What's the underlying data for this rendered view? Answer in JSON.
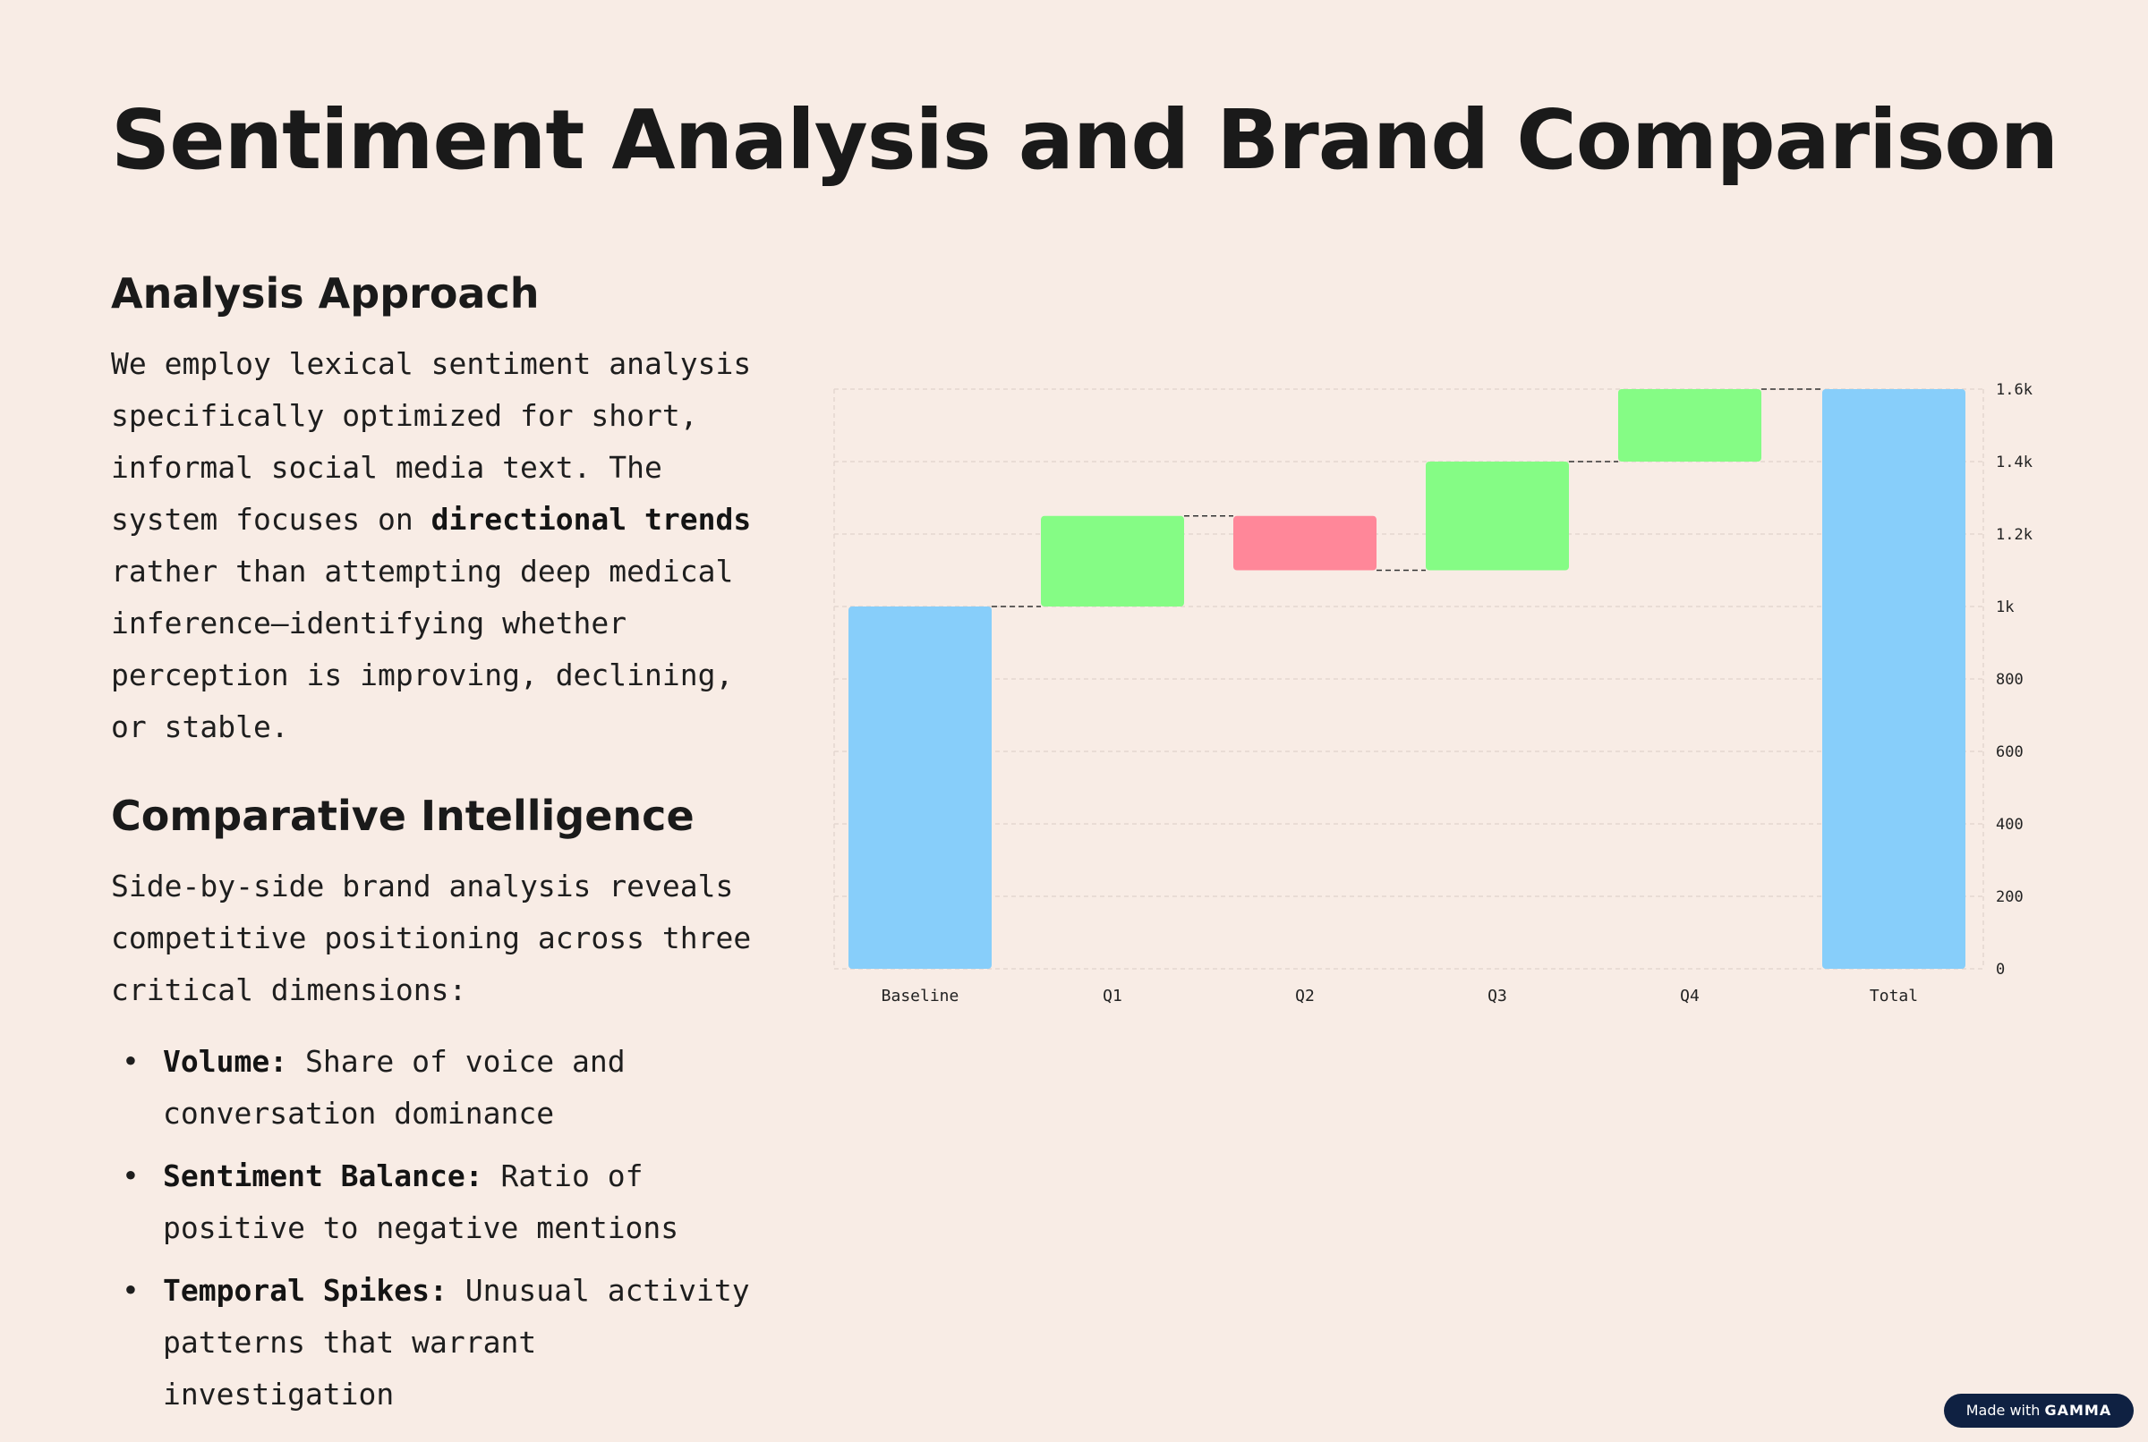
{
  "title": "Sentiment Analysis and Brand Comparison",
  "approach": {
    "heading": "Analysis Approach",
    "text_before": "We employ lexical sentiment analysis specifically optimized for short, informal social media text. The system focuses on ",
    "bold": "directional trends",
    "text_after": " rather than attempting deep medical inference—identifying whether perception is improving, declining, or stable."
  },
  "comparative": {
    "heading": "Comparative Intelligence",
    "intro": "Side-by-side brand analysis reveals competitive positioning across three critical dimensions:",
    "bullets": [
      {
        "term": "Volume:",
        "text": "Share of voice and conversation dominance"
      },
      {
        "term": "Sentiment Balance:",
        "text": "Ratio of positive to negative mentions"
      },
      {
        "term": "Temporal Spikes:",
        "text": "Unusual activity patterns that warrant investigation"
      }
    ]
  },
  "chart_data": {
    "type": "bar",
    "subtype": "waterfall",
    "categories": [
      "Baseline",
      "Q1",
      "Q2",
      "Q3",
      "Q4",
      "Total"
    ],
    "steps": [
      {
        "label": "Baseline",
        "kind": "total",
        "value": 1000
      },
      {
        "label": "Q1",
        "kind": "increase",
        "value": 250
      },
      {
        "label": "Q2",
        "kind": "decrease",
        "value": -150
      },
      {
        "label": "Q3",
        "kind": "increase",
        "value": 300
      },
      {
        "label": "Q4",
        "kind": "increase",
        "value": 200
      },
      {
        "label": "Total",
        "kind": "total",
        "value": 1600
      }
    ],
    "ylim": [
      0,
      1600
    ],
    "y_ticks": [
      0,
      200,
      400,
      600,
      800,
      1000,
      1200,
      1400,
      1600
    ],
    "y_tick_labels": [
      "0",
      "200",
      "400",
      "600",
      "800",
      "1k",
      "1.2k",
      "1.4k",
      "1.6k"
    ],
    "y_axis_side": "right",
    "grid": true,
    "connectors": true,
    "colors": {
      "total": "#87cefa",
      "increase": "#85fc85",
      "decrease": "#ff8799",
      "grid": "#e4d6d0",
      "connector": "#333333"
    },
    "title": "",
    "xlabel": "",
    "ylabel": ""
  },
  "badge": {
    "prefix": "Made with",
    "brand": "GAMMA"
  }
}
